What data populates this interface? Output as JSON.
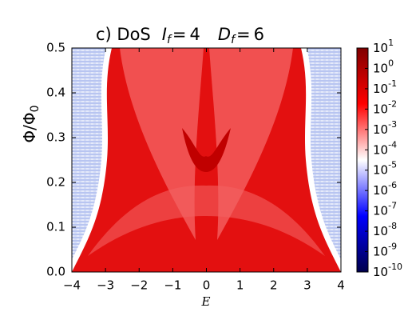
{
  "chart_data": {
    "type": "heatmap",
    "title": "c) DoS",
    "title_params": [
      {
        "symbol": "I",
        "subscript": "f",
        "relation": "=",
        "value": 4
      },
      {
        "symbol": "D",
        "subscript": "f",
        "relation": "=",
        "value": 6
      }
    ],
    "xlabel": "E",
    "ylabel": {
      "text": "Φ/Φ",
      "subscript": "0"
    },
    "xlim": [
      -4,
      4
    ],
    "xticks": [
      {
        "value": -4,
        "label": "−4"
      },
      {
        "value": -3,
        "label": "−3"
      },
      {
        "value": -2,
        "label": "−2"
      },
      {
        "value": -1,
        "label": "−1"
      },
      0,
      1,
      2,
      3,
      4
    ],
    "ylim": [
      0,
      0.5
    ],
    "yticks": [
      {
        "value": 0,
        "label": "0.0"
      },
      0.1,
      0.2,
      0.3,
      0.4,
      0.5
    ],
    "colormap": "seismic",
    "colorbar": {
      "log": true,
      "lim": [
        1e-10,
        10
      ],
      "ticks": [
        {
          "value": 10,
          "label": "10",
          "exponent": "1"
        },
        {
          "value": 1,
          "label": "10",
          "exponent": "0"
        },
        {
          "value": 0.1,
          "label": "10",
          "exponent": "-1"
        },
        {
          "value": 0.01,
          "label": "10",
          "exponent": "-2"
        },
        {
          "value": 0.001,
          "label": "10",
          "exponent": "-3"
        },
        {
          "value": 0.0001,
          "label": "10",
          "exponent": "-4"
        },
        {
          "value": 1e-05,
          "label": "10",
          "exponent": "-5"
        },
        {
          "value": 1e-06,
          "label": "10",
          "exponent": "-6"
        },
        {
          "value": 1e-07,
          "label": "10",
          "exponent": "-7"
        },
        {
          "value": 1e-08,
          "label": "10",
          "exponent": "-8"
        },
        {
          "value": 1e-09,
          "label": "10",
          "exponent": "-9"
        },
        {
          "value": 1e-10,
          "label": "10",
          "exponent": "-10"
        }
      ]
    }
  }
}
